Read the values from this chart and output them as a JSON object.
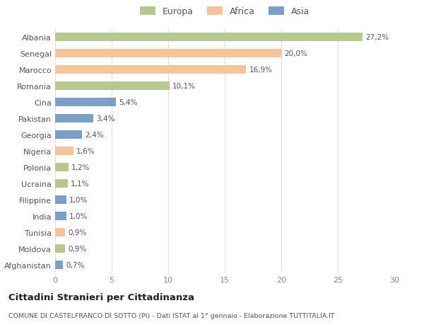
{
  "categories": [
    "Albania",
    "Senegal",
    "Marocco",
    "Romania",
    "Cina",
    "Pakistan",
    "Georgia",
    "Nigeria",
    "Polonia",
    "Ucraina",
    "Filippine",
    "India",
    "Tunisia",
    "Moldova",
    "Afghanistan"
  ],
  "values": [
    27.2,
    20.0,
    16.9,
    10.1,
    5.4,
    3.4,
    2.4,
    1.6,
    1.2,
    1.1,
    1.0,
    1.0,
    0.9,
    0.9,
    0.7
  ],
  "labels": [
    "27,2%",
    "20,0%",
    "16,9%",
    "10,1%",
    "5,4%",
    "3,4%",
    "2,4%",
    "1,6%",
    "1,2%",
    "1,1%",
    "1,0%",
    "1,0%",
    "0,9%",
    "0,9%",
    "0,7%"
  ],
  "colors": [
    "#b5c98e",
    "#f5c49a",
    "#f5c49a",
    "#b5c98e",
    "#7b9fc7",
    "#7b9fc7",
    "#7b9fc7",
    "#f5c49a",
    "#b5c98e",
    "#b5c98e",
    "#7b9fc7",
    "#7b9fc7",
    "#f5c49a",
    "#b5c98e",
    "#7b9fc7"
  ],
  "legend_labels": [
    "Europa",
    "Africa",
    "Asia"
  ],
  "legend_colors": [
    "#b5c98e",
    "#f5c49a",
    "#7b9fc7"
  ],
  "title": "Cittadini Stranieri per Cittadinanza",
  "subtitle": "COMUNE DI CASTELFRANCO DI SOTTO (PI) - Dati ISTAT al 1° gennaio - Elaborazione TUTTITALIA.IT",
  "xlim": [
    0,
    30
  ],
  "xticks": [
    0,
    5,
    10,
    15,
    20,
    25,
    30
  ],
  "background_color": "#ffffff",
  "grid_color": "#e0e0e0"
}
